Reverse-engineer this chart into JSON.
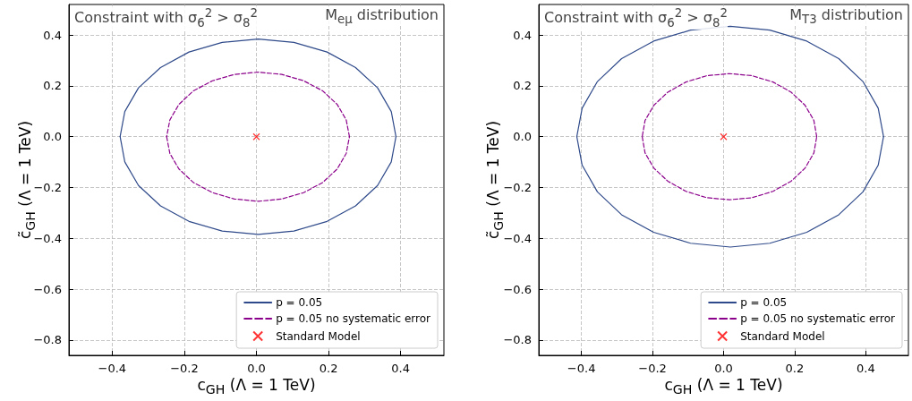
{
  "chart_data": [
    {
      "type": "line",
      "title": "Constraint with σ$_{6}$$^{2}$ > σ$_{8}$$^{2}$",
      "annotations": [
        "M$_{eμ}$ distribution"
      ],
      "xlabel": "c$_{GH}$ (Λ = 1 TeV)",
      "ylabel": "c̃$_{GH}$ (Λ = 1 TeV)",
      "xlim": [
        -0.52,
        0.52
      ],
      "ylim": [
        -0.86,
        0.52
      ],
      "xticks": [
        {
          "value": -0.4,
          "label": "−0.4"
        },
        {
          "value": -0.2,
          "label": "−0.2"
        },
        {
          "value": 0,
          "label": "0.0"
        },
        {
          "value": 0.2,
          "label": "0.2"
        },
        {
          "value": 0.4,
          "label": "0.4"
        }
      ],
      "yticks": [
        {
          "value": -0.8,
          "label": "−0.8"
        },
        {
          "value": -0.6,
          "label": "−0.6"
        },
        {
          "value": -0.4,
          "label": "−0.4"
        },
        {
          "value": -0.2,
          "label": "−0.2"
        },
        {
          "value": 0,
          "label": "0.0"
        },
        {
          "value": 0.2,
          "label": "0.2"
        },
        {
          "value": 0.4,
          "label": "0.4"
        }
      ],
      "grid": true,
      "legend": "bottom right",
      "marker": "none",
      "series": [
        {
          "name": "p = 0.05",
          "color": "#2f4a8a",
          "line_style": "solid",
          "x": [
            0.387,
            0.374,
            0.336,
            0.275,
            0.196,
            0.104,
            0.005,
            -0.095,
            -0.187,
            -0.266,
            -0.327,
            -0.365,
            -0.378,
            -0.365,
            -0.327,
            -0.266,
            -0.187,
            -0.095,
            0.005,
            0.104,
            0.196,
            0.275,
            0.336,
            0.374
          ],
          "values": [
            0,
            0.099,
            0.192,
            0.272,
            0.333,
            0.371,
            0.384,
            0.371,
            0.333,
            0.272,
            0.192,
            0.099,
            0,
            -0.099,
            -0.192,
            -0.272,
            -0.333,
            -0.371,
            -0.384,
            -0.371,
            -0.333,
            -0.272,
            -0.192,
            -0.099
          ]
        },
        {
          "name": "p = 0.05 no systematic error",
          "color": "#8b008b",
          "line_style": "dashed",
          "x": [
            0.258,
            0.249,
            0.224,
            0.184,
            0.131,
            0.07,
            0.005,
            -0.061,
            -0.122,
            -0.175,
            -0.215,
            -0.24,
            -0.249,
            -0.24,
            -0.215,
            -0.175,
            -0.122,
            -0.061,
            0.005,
            0.07,
            0.131,
            0.184,
            0.224,
            0.249
          ],
          "values": [
            0,
            0.066,
            0.127,
            0.18,
            0.22,
            0.245,
            0.254,
            0.245,
            0.22,
            0.18,
            0.127,
            0.066,
            0,
            -0.066,
            -0.127,
            -0.18,
            -0.22,
            -0.245,
            -0.254,
            -0.245,
            -0.22,
            -0.18,
            -0.127,
            -0.066
          ]
        },
        {
          "name": "Standard Model",
          "type": "scatter",
          "color": "#ff0000",
          "marker": "cross",
          "x": [
            0
          ],
          "values": [
            0
          ]
        }
      ]
    },
    {
      "type": "line",
      "title": "Constraint with σ$_{6}$$^{2}$ > σ$_{8}$$^{2}$",
      "annotations": [
        "M$_{T3}$ distribution"
      ],
      "xlabel": "c$_{GH}$ (Λ = 1 TeV)",
      "ylabel": "c̃$_{GH}$ (Λ = 1 TeV)",
      "xlim": [
        -0.52,
        0.52
      ],
      "ylim": [
        -0.86,
        0.52
      ],
      "xticks": [
        {
          "value": -0.4,
          "label": "−0.4"
        },
        {
          "value": -0.2,
          "label": "−0.2"
        },
        {
          "value": 0,
          "label": "0.0"
        },
        {
          "value": 0.2,
          "label": "0.2"
        },
        {
          "value": 0.4,
          "label": "0.4"
        }
      ],
      "yticks": [
        {
          "value": -0.8,
          "label": "−0.8"
        },
        {
          "value": -0.6,
          "label": "−0.6"
        },
        {
          "value": -0.4,
          "label": "−0.4"
        },
        {
          "value": -0.2,
          "label": "−0.2"
        },
        {
          "value": 0,
          "label": "0.0"
        },
        {
          "value": 0.2,
          "label": "0.2"
        },
        {
          "value": 0.4,
          "label": "0.4"
        }
      ],
      "grid": true,
      "legend": "bottom right",
      "marker": "none",
      "series": [
        {
          "name": "p = 0.05",
          "color": "#2f4a8a",
          "line_style": "solid",
          "x": [
            0.45,
            0.435,
            0.392,
            0.324,
            0.234,
            0.13,
            0.019,
            -0.093,
            -0.197,
            -0.287,
            -0.355,
            -0.398,
            -0.413,
            -0.398,
            -0.355,
            -0.287,
            -0.197,
            -0.093,
            0.019,
            0.13,
            0.234,
            0.324,
            0.392,
            0.435
          ],
          "values": [
            0,
            0.112,
            0.217,
            0.307,
            0.376,
            0.419,
            0.434,
            0.419,
            0.376,
            0.307,
            0.217,
            0.112,
            0,
            -0.112,
            -0.217,
            -0.307,
            -0.376,
            -0.419,
            -0.434,
            -0.419,
            -0.376,
            -0.307,
            -0.217,
            -0.112
          ]
        },
        {
          "name": "p = 0.05 no systematic error",
          "color": "#8b008b",
          "line_style": "dashed",
          "x": [
            0.262,
            0.254,
            0.229,
            0.19,
            0.139,
            0.08,
            0.017,
            -0.047,
            -0.106,
            -0.157,
            -0.196,
            -0.221,
            -0.229,
            -0.221,
            -0.196,
            -0.157,
            -0.106,
            -0.047,
            0.017,
            0.08,
            0.139,
            0.19,
            0.229,
            0.254
          ],
          "values": [
            0,
            0.064,
            0.124,
            0.175,
            0.215,
            0.24,
            0.248,
            0.24,
            0.215,
            0.175,
            0.124,
            0.064,
            0,
            -0.064,
            -0.124,
            -0.175,
            -0.215,
            -0.24,
            -0.248,
            -0.24,
            -0.215,
            -0.175,
            -0.124,
            -0.064
          ]
        },
        {
          "name": "Standard Model",
          "type": "scatter",
          "color": "#ff0000",
          "marker": "cross",
          "x": [
            0
          ],
          "values": [
            0
          ]
        }
      ]
    }
  ]
}
